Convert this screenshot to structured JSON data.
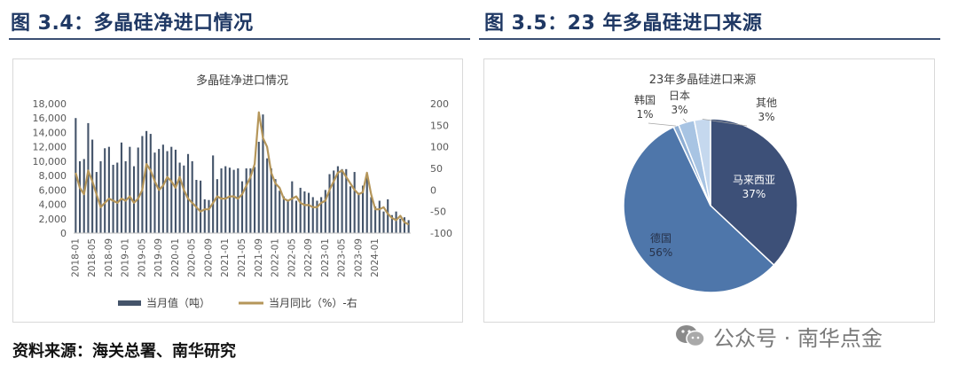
{
  "left_figure": {
    "heading": "图 3.4：多晶硅净进口情况"
  },
  "right_figure": {
    "heading": "图 3.5：23 年多晶硅进口来源"
  },
  "source_note": "资料来源：海关总署、南华研究",
  "watermark": {
    "text": "公众号 · 南华点金",
    "icon": "wechat-icon"
  },
  "colors": {
    "accent": "#1f3864",
    "bar": "#44546a",
    "line": "#b5965a",
    "pie": [
      "#3d5078",
      "#4e76aa",
      "#8eaed4",
      "#a8c4e3",
      "#c5d8ee"
    ]
  },
  "chart_data": [
    {
      "type": "bar+line",
      "title": "多晶硅净进口情况",
      "x_tick_labels": [
        "2018-01",
        "2018-05",
        "2018-09",
        "2019-01",
        "2019-05",
        "2019-09",
        "2020-01",
        "2020-05",
        "2020-09",
        "2021-01",
        "2021-05",
        "2021-09",
        "2022-01",
        "2022-05",
        "2022-09",
        "2023-01",
        "2023-05",
        "2023-09",
        "2024-01"
      ],
      "y_left": {
        "ticks": [
          "18,000",
          "16,000",
          "14,000",
          "12,000",
          "10,000",
          "8,000",
          "6,000",
          "4,000",
          "2,000",
          "0"
        ],
        "range": [
          0,
          18000
        ]
      },
      "y_right": {
        "ticks": [
          "200",
          "150",
          "100",
          "50",
          "0",
          "-50",
          "-100"
        ],
        "range": [
          -100,
          200
        ]
      },
      "legend": [
        "当月值（吨）",
        "当月同比（%）-右"
      ],
      "legend_position": "bottom",
      "grid": false,
      "series": [
        {
          "name": "当月值（吨）",
          "kind": "bar",
          "values": [
            16000,
            10000,
            10300,
            15300,
            13000,
            8500,
            10000,
            11800,
            12000,
            9500,
            9800,
            12600,
            10000,
            12000,
            9300,
            11900,
            13500,
            14200,
            13800,
            11200,
            11700,
            12300,
            11400,
            12000,
            11600,
            9800,
            9400,
            11000,
            10000,
            7400,
            7300,
            4700,
            4600,
            10800,
            7500,
            9000,
            9300,
            9100,
            8800,
            9000,
            7200,
            9000,
            9000,
            9200,
            12700,
            16500,
            10400,
            9000,
            7500,
            5900,
            5100,
            4600,
            7200,
            4500,
            6300,
            5800,
            5600,
            5000,
            4500,
            5000,
            6000,
            8200,
            8700,
            9300,
            8900,
            8900,
            6500,
            8500,
            5600,
            6600,
            8000,
            5000,
            3700,
            4500,
            3000,
            4700,
            2500,
            3000,
            2000,
            2200,
            1800
          ],
          "axis": "left"
        },
        {
          "name": "当月同比（%）-右",
          "kind": "line",
          "values": [
            40,
            5,
            -10,
            45,
            20,
            -10,
            -40,
            -30,
            -20,
            -25,
            -30,
            -20,
            -25,
            -15,
            -30,
            -20,
            0,
            60,
            45,
            20,
            0,
            10,
            30,
            20,
            5,
            30,
            0,
            -20,
            -30,
            -40,
            -50,
            -45,
            -45,
            -30,
            -15,
            -20,
            -20,
            -15,
            -15,
            -20,
            -10,
            10,
            30,
            60,
            180,
            120,
            100,
            40,
            15,
            5,
            -20,
            -25,
            -20,
            -15,
            -30,
            -35,
            -35,
            -40,
            -40,
            -30,
            -25,
            0,
            20,
            40,
            45,
            30,
            15,
            0,
            -10,
            -5,
            40,
            -10,
            -45,
            -45,
            -40,
            -55,
            -65,
            -70,
            -60,
            -75,
            -80
          ],
          "axis": "right"
        }
      ]
    },
    {
      "type": "pie",
      "title": "23年多晶硅进口来源",
      "slices": [
        {
          "name": "马来西亚",
          "value": 37,
          "label": "37%"
        },
        {
          "name": "德国",
          "value": 56,
          "label": "56%"
        },
        {
          "name": "韩国",
          "value": 1,
          "label": "1%"
        },
        {
          "name": "日本",
          "value": 3,
          "label": "3%"
        },
        {
          "name": "其他",
          "value": 3,
          "label": "3%"
        }
      ]
    }
  ]
}
